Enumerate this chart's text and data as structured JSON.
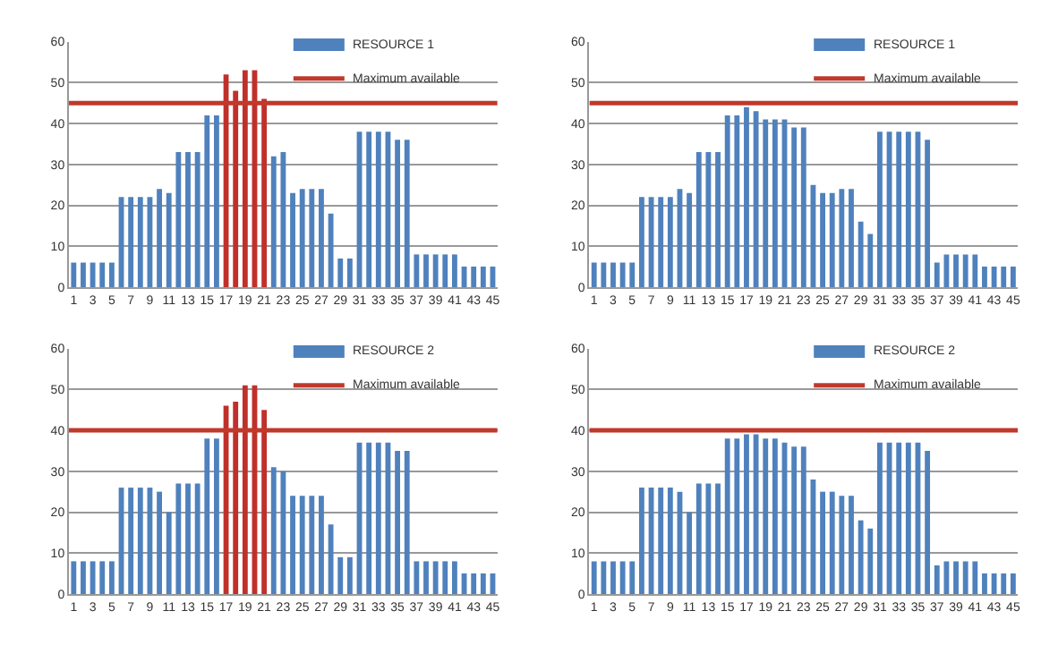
{
  "chart_data": [
    {
      "type": "bar",
      "x": [
        1,
        2,
        3,
        4,
        5,
        6,
        7,
        8,
        9,
        10,
        11,
        12,
        13,
        14,
        15,
        16,
        17,
        18,
        19,
        20,
        21,
        22,
        23,
        24,
        25,
        26,
        27,
        28,
        29,
        30,
        31,
        32,
        33,
        34,
        35,
        36,
        37,
        38,
        39,
        40,
        41,
        42,
        43,
        44,
        45
      ],
      "xlim": [
        0.5,
        45.5
      ],
      "xticks": [
        1,
        3,
        5,
        7,
        9,
        11,
        13,
        15,
        17,
        19,
        21,
        23,
        25,
        27,
        29,
        31,
        33,
        35,
        37,
        39,
        41,
        43,
        45
      ],
      "ylim": [
        0,
        60
      ],
      "yticks": [
        0,
        10,
        20,
        30,
        40,
        50,
        60
      ],
      "grid": "y",
      "legend": "top right",
      "series": [
        {
          "name": "RESOURCE 1",
          "color": "#4f81bd",
          "values": [
            6,
            6,
            6,
            6,
            6,
            22,
            22,
            22,
            22,
            24,
            23,
            33,
            33,
            33,
            42,
            42,
            52,
            48,
            53,
            53,
            46,
            32,
            33,
            23,
            24,
            24,
            24,
            18,
            7,
            7,
            38,
            38,
            38,
            38,
            36,
            36,
            8,
            8,
            8,
            8,
            8,
            5,
            5,
            5,
            5
          ],
          "colors": [
            "#4f81bd",
            "#4f81bd",
            "#4f81bd",
            "#4f81bd",
            "#4f81bd",
            "#4f81bd",
            "#4f81bd",
            "#4f81bd",
            "#4f81bd",
            "#4f81bd",
            "#4f81bd",
            "#4f81bd",
            "#4f81bd",
            "#4f81bd",
            "#4f81bd",
            "#4f81bd",
            "#c0302b",
            "#c0302b",
            "#c0302b",
            "#c0302b",
            "#c0302b",
            "#4f81bd",
            "#4f81bd",
            "#4f81bd",
            "#4f81bd",
            "#4f81bd",
            "#4f81bd",
            "#4f81bd",
            "#4f81bd",
            "#4f81bd",
            "#4f81bd",
            "#4f81bd",
            "#4f81bd",
            "#4f81bd",
            "#4f81bd",
            "#4f81bd",
            "#4f81bd",
            "#4f81bd",
            "#4f81bd",
            "#4f81bd",
            "#4f81bd",
            "#4f81bd",
            "#4f81bd",
            "#4f81bd",
            "#4f81bd"
          ]
        }
      ],
      "ref_lines": [
        {
          "axis": "y",
          "value": 45,
          "label": "Maximum available",
          "color": "#c0392b"
        }
      ]
    },
    {
      "type": "bar",
      "x": [
        1,
        2,
        3,
        4,
        5,
        6,
        7,
        8,
        9,
        10,
        11,
        12,
        13,
        14,
        15,
        16,
        17,
        18,
        19,
        20,
        21,
        22,
        23,
        24,
        25,
        26,
        27,
        28,
        29,
        30,
        31,
        32,
        33,
        34,
        35,
        36,
        37,
        38,
        39,
        40,
        41,
        42,
        43,
        44,
        45
      ],
      "xlim": [
        0.5,
        45.5
      ],
      "xticks": [
        1,
        3,
        5,
        7,
        9,
        11,
        13,
        15,
        17,
        19,
        21,
        23,
        25,
        27,
        29,
        31,
        33,
        35,
        37,
        39,
        41,
        43,
        45
      ],
      "ylim": [
        0,
        60
      ],
      "yticks": [
        0,
        10,
        20,
        30,
        40,
        50,
        60
      ],
      "grid": "y",
      "legend": "top right",
      "series": [
        {
          "name": "RESOURCE 1",
          "color": "#4f81bd",
          "values": [
            6,
            6,
            6,
            6,
            6,
            22,
            22,
            22,
            22,
            24,
            23,
            33,
            33,
            33,
            42,
            42,
            44,
            43,
            41,
            41,
            41,
            39,
            39,
            25,
            23,
            23,
            24,
            24,
            16,
            13,
            38,
            38,
            38,
            38,
            38,
            36,
            6,
            8,
            8,
            8,
            8,
            5,
            5,
            5,
            5
          ]
        }
      ],
      "ref_lines": [
        {
          "axis": "y",
          "value": 45,
          "label": "Maximum available",
          "color": "#c0392b"
        }
      ]
    },
    {
      "type": "bar",
      "x": [
        1,
        2,
        3,
        4,
        5,
        6,
        7,
        8,
        9,
        10,
        11,
        12,
        13,
        14,
        15,
        16,
        17,
        18,
        19,
        20,
        21,
        22,
        23,
        24,
        25,
        26,
        27,
        28,
        29,
        30,
        31,
        32,
        33,
        34,
        35,
        36,
        37,
        38,
        39,
        40,
        41,
        42,
        43,
        44,
        45
      ],
      "xlim": [
        0.5,
        45.5
      ],
      "xticks": [
        1,
        3,
        5,
        7,
        9,
        11,
        13,
        15,
        17,
        19,
        21,
        23,
        25,
        27,
        29,
        31,
        33,
        35,
        37,
        39,
        41,
        43,
        45
      ],
      "ylim": [
        0,
        60
      ],
      "yticks": [
        0,
        10,
        20,
        30,
        40,
        50,
        60
      ],
      "grid": "y",
      "legend": "top right",
      "series": [
        {
          "name": "RESOURCE 2",
          "color": "#4f81bd",
          "values": [
            8,
            8,
            8,
            8,
            8,
            26,
            26,
            26,
            26,
            25,
            20,
            27,
            27,
            27,
            38,
            38,
            46,
            47,
            51,
            51,
            45,
            31,
            30,
            24,
            24,
            24,
            24,
            17,
            9,
            9,
            37,
            37,
            37,
            37,
            35,
            35,
            8,
            8,
            8,
            8,
            8,
            5,
            5,
            5,
            5
          ],
          "colors": [
            "#4f81bd",
            "#4f81bd",
            "#4f81bd",
            "#4f81bd",
            "#4f81bd",
            "#4f81bd",
            "#4f81bd",
            "#4f81bd",
            "#4f81bd",
            "#4f81bd",
            "#4f81bd",
            "#4f81bd",
            "#4f81bd",
            "#4f81bd",
            "#4f81bd",
            "#4f81bd",
            "#c0302b",
            "#c0302b",
            "#c0302b",
            "#c0302b",
            "#c0302b",
            "#4f81bd",
            "#4f81bd",
            "#4f81bd",
            "#4f81bd",
            "#4f81bd",
            "#4f81bd",
            "#4f81bd",
            "#4f81bd",
            "#4f81bd",
            "#4f81bd",
            "#4f81bd",
            "#4f81bd",
            "#4f81bd",
            "#4f81bd",
            "#4f81bd",
            "#4f81bd",
            "#4f81bd",
            "#4f81bd",
            "#4f81bd",
            "#4f81bd",
            "#4f81bd",
            "#4f81bd",
            "#4f81bd",
            "#4f81bd"
          ]
        }
      ],
      "ref_lines": [
        {
          "axis": "y",
          "value": 40,
          "label": "Maximum available",
          "color": "#c0392b"
        }
      ]
    },
    {
      "type": "bar",
      "x": [
        1,
        2,
        3,
        4,
        5,
        6,
        7,
        8,
        9,
        10,
        11,
        12,
        13,
        14,
        15,
        16,
        17,
        18,
        19,
        20,
        21,
        22,
        23,
        24,
        25,
        26,
        27,
        28,
        29,
        30,
        31,
        32,
        33,
        34,
        35,
        36,
        37,
        38,
        39,
        40,
        41,
        42,
        43,
        44,
        45
      ],
      "xlim": [
        0.5,
        45.5
      ],
      "xticks": [
        1,
        3,
        5,
        7,
        9,
        11,
        13,
        15,
        17,
        19,
        21,
        23,
        25,
        27,
        29,
        31,
        33,
        35,
        37,
        39,
        41,
        43,
        45
      ],
      "ylim": [
        0,
        60
      ],
      "yticks": [
        0,
        10,
        20,
        30,
        40,
        50,
        60
      ],
      "grid": "y",
      "legend": "top right",
      "series": [
        {
          "name": "RESOURCE 2",
          "color": "#4f81bd",
          "values": [
            8,
            8,
            8,
            8,
            8,
            26,
            26,
            26,
            26,
            25,
            20,
            27,
            27,
            27,
            38,
            38,
            39,
            39,
            38,
            38,
            37,
            36,
            36,
            28,
            25,
            25,
            24,
            24,
            18,
            16,
            37,
            37,
            37,
            37,
            37,
            35,
            7,
            8,
            8,
            8,
            8,
            5,
            5,
            5,
            5
          ]
        }
      ],
      "ref_lines": [
        {
          "axis": "y",
          "value": 40,
          "label": "Maximum available",
          "color": "#c0392b"
        }
      ]
    }
  ]
}
